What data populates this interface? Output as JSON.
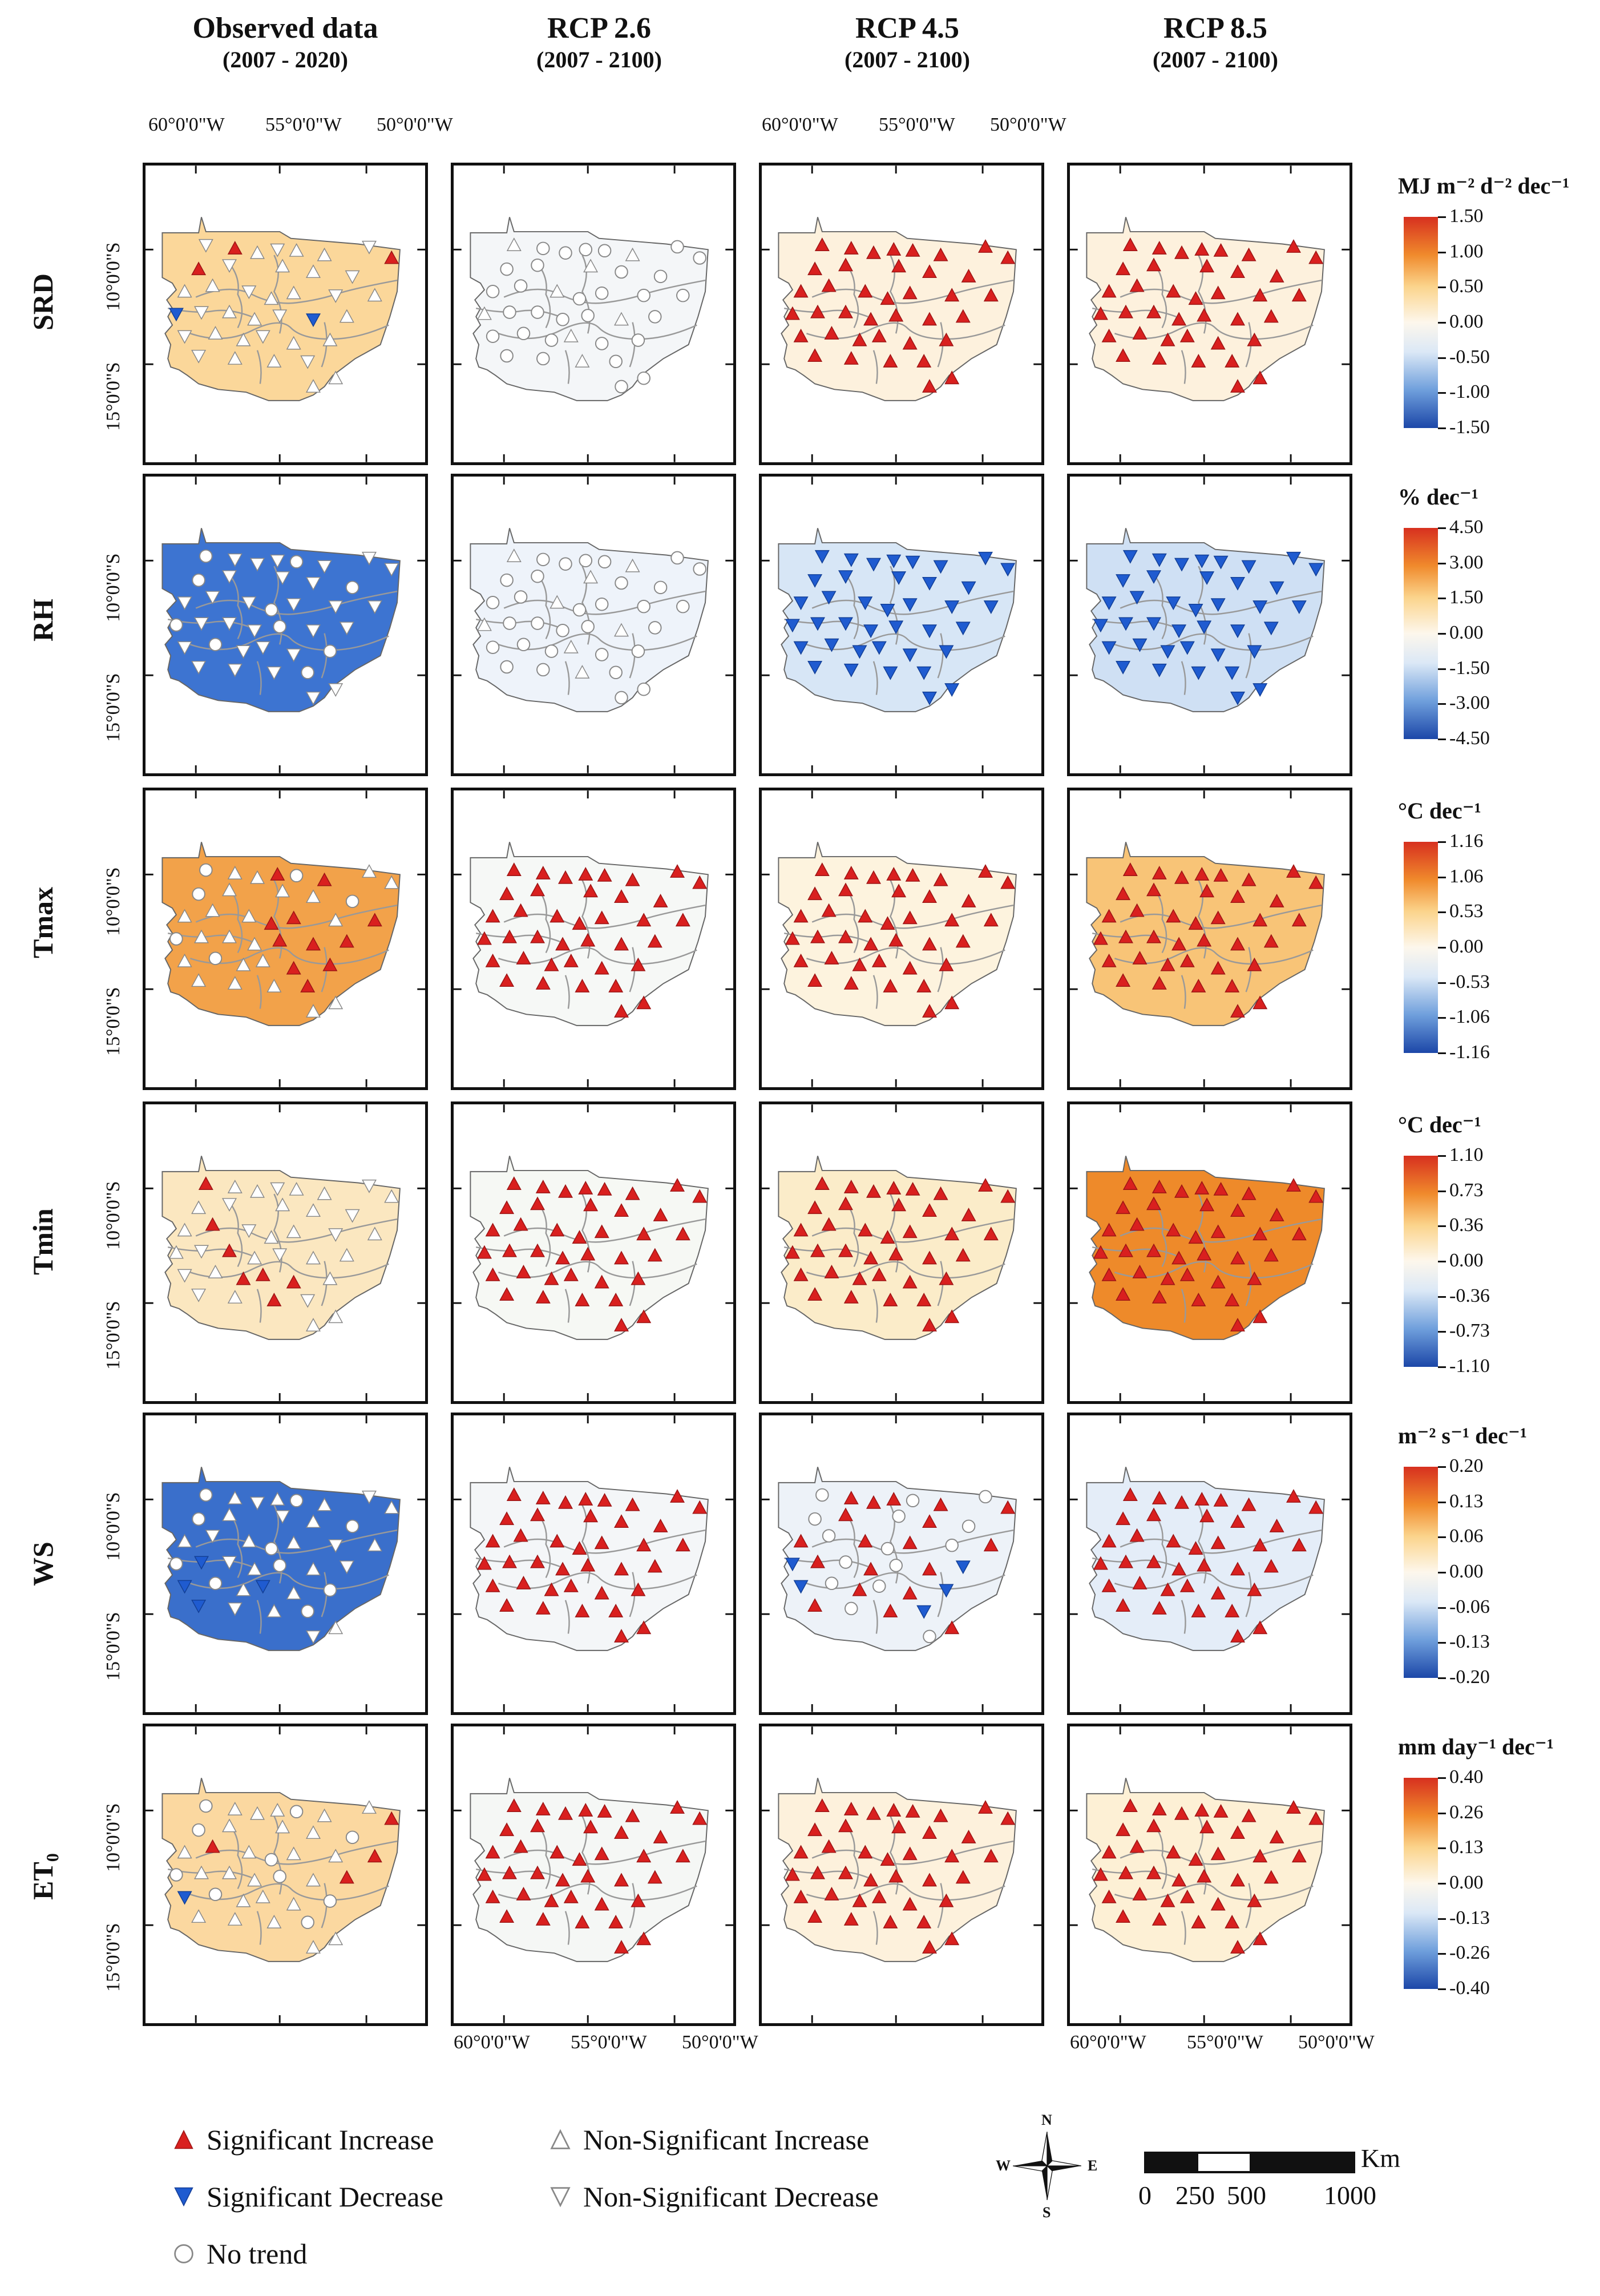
{
  "columns": [
    {
      "title": "Observed data",
      "period": "(2007 - 2020)"
    },
    {
      "title": "RCP 2.6",
      "period": "(2007 - 2100)"
    },
    {
      "title": "RCP 4.5",
      "period": "(2007 - 2100)"
    },
    {
      "title": "RCP 8.5",
      "period": "(2007 - 2100)"
    }
  ],
  "rows": [
    {
      "label": "SRD",
      "unit": "MJ m⁻² d⁻² dec⁻¹",
      "ticks": [
        "1.50",
        "1.00",
        "0.50",
        "0.00",
        "-0.50",
        "-1.00",
        "-1.50"
      ],
      "fills": [
        "#fbd79a",
        "#f4f6f8",
        "#fdf1dd",
        "#fdf1dd"
      ],
      "markers": [
        "mixed_srd",
        "circles",
        "sig_inc",
        "sig_inc"
      ]
    },
    {
      "label": "RH",
      "unit": "% dec⁻¹",
      "ticks": [
        "4.50",
        "3.00",
        "1.50",
        "0.00",
        "-1.50",
        "-3.00",
        "-4.50"
      ],
      "fills": [
        "#3d74d1",
        "#eef3fa",
        "#d7e6f6",
        "#cfe0f4"
      ],
      "markers": [
        "mixed_rh",
        "circles",
        "sig_dec",
        "sig_dec"
      ]
    },
    {
      "label": "Tmax",
      "unit": "°C dec⁻¹",
      "ticks": [
        "1.16",
        "1.06",
        "0.53",
        "0.00",
        "-0.53",
        "-1.06",
        "-1.16"
      ],
      "fills": [
        "#f2a24a",
        "#f6f8f6",
        "#fdf3de",
        "#f8c477"
      ],
      "markers": [
        "mixed_tmax",
        "sig_inc",
        "sig_inc",
        "sig_inc"
      ]
    },
    {
      "label": "Tmin",
      "unit": "°C dec⁻¹",
      "ticks": [
        "1.10",
        "0.73",
        "0.36",
        "0.00",
        "-0.36",
        "-0.73",
        "-1.10"
      ],
      "fills": [
        "#fbe7c0",
        "#f6f8f4",
        "#fbecc9",
        "#ee8a2a"
      ],
      "markers": [
        "mixed_tmin",
        "sig_inc",
        "sig_inc",
        "sig_inc"
      ]
    },
    {
      "label": "WS",
      "unit": "m⁻² s⁻¹ dec⁻¹",
      "ticks": [
        "0.20",
        "0.13",
        "0.06",
        "0.00",
        "-0.06",
        "-0.13",
        "-0.20"
      ],
      "fills": [
        "#3a6fcb",
        "#f4f6f8",
        "#edf2f8",
        "#e4edf8"
      ],
      "markers": [
        "mixed_ws",
        "sig_inc",
        "mixed_ws45",
        "sig_inc"
      ]
    },
    {
      "label": "ET₀",
      "unit": "mm day⁻¹ dec⁻¹",
      "ticks": [
        "0.40",
        "0.26",
        "0.13",
        "0.00",
        "-0.13",
        "-0.26",
        "-0.40"
      ],
      "fills": [
        "#fbd8a0",
        "#f5f7f5",
        "#fdf1dc",
        "#fdf0d5"
      ],
      "markers": [
        "mixed_et",
        "sig_inc",
        "sig_inc",
        "sig_inc"
      ]
    }
  ],
  "axes": {
    "lon_labels": [
      "60°0'0\"W",
      "55°0'0\"W",
      "50°0'0\"W"
    ],
    "lat_labels": [
      "10°0'0\"S",
      "15°0'0\"S"
    ]
  },
  "legend": {
    "sig_inc": "Significant Increase",
    "sig_dec": "Significant Decrease",
    "no_trend": "No trend",
    "nonsig_inc": "Non-Significant Increase",
    "nonsig_dec": "Non-Significant Decrease"
  },
  "compass": {
    "n": "N",
    "s": "S",
    "e": "E",
    "w": "W"
  },
  "scale": {
    "unit": "Km",
    "labels": [
      "0",
      "250",
      "500",
      "1000"
    ]
  },
  "colors": {
    "red": "#d9201f",
    "blue": "#1f5bd0",
    "grey": "#888888"
  }
}
